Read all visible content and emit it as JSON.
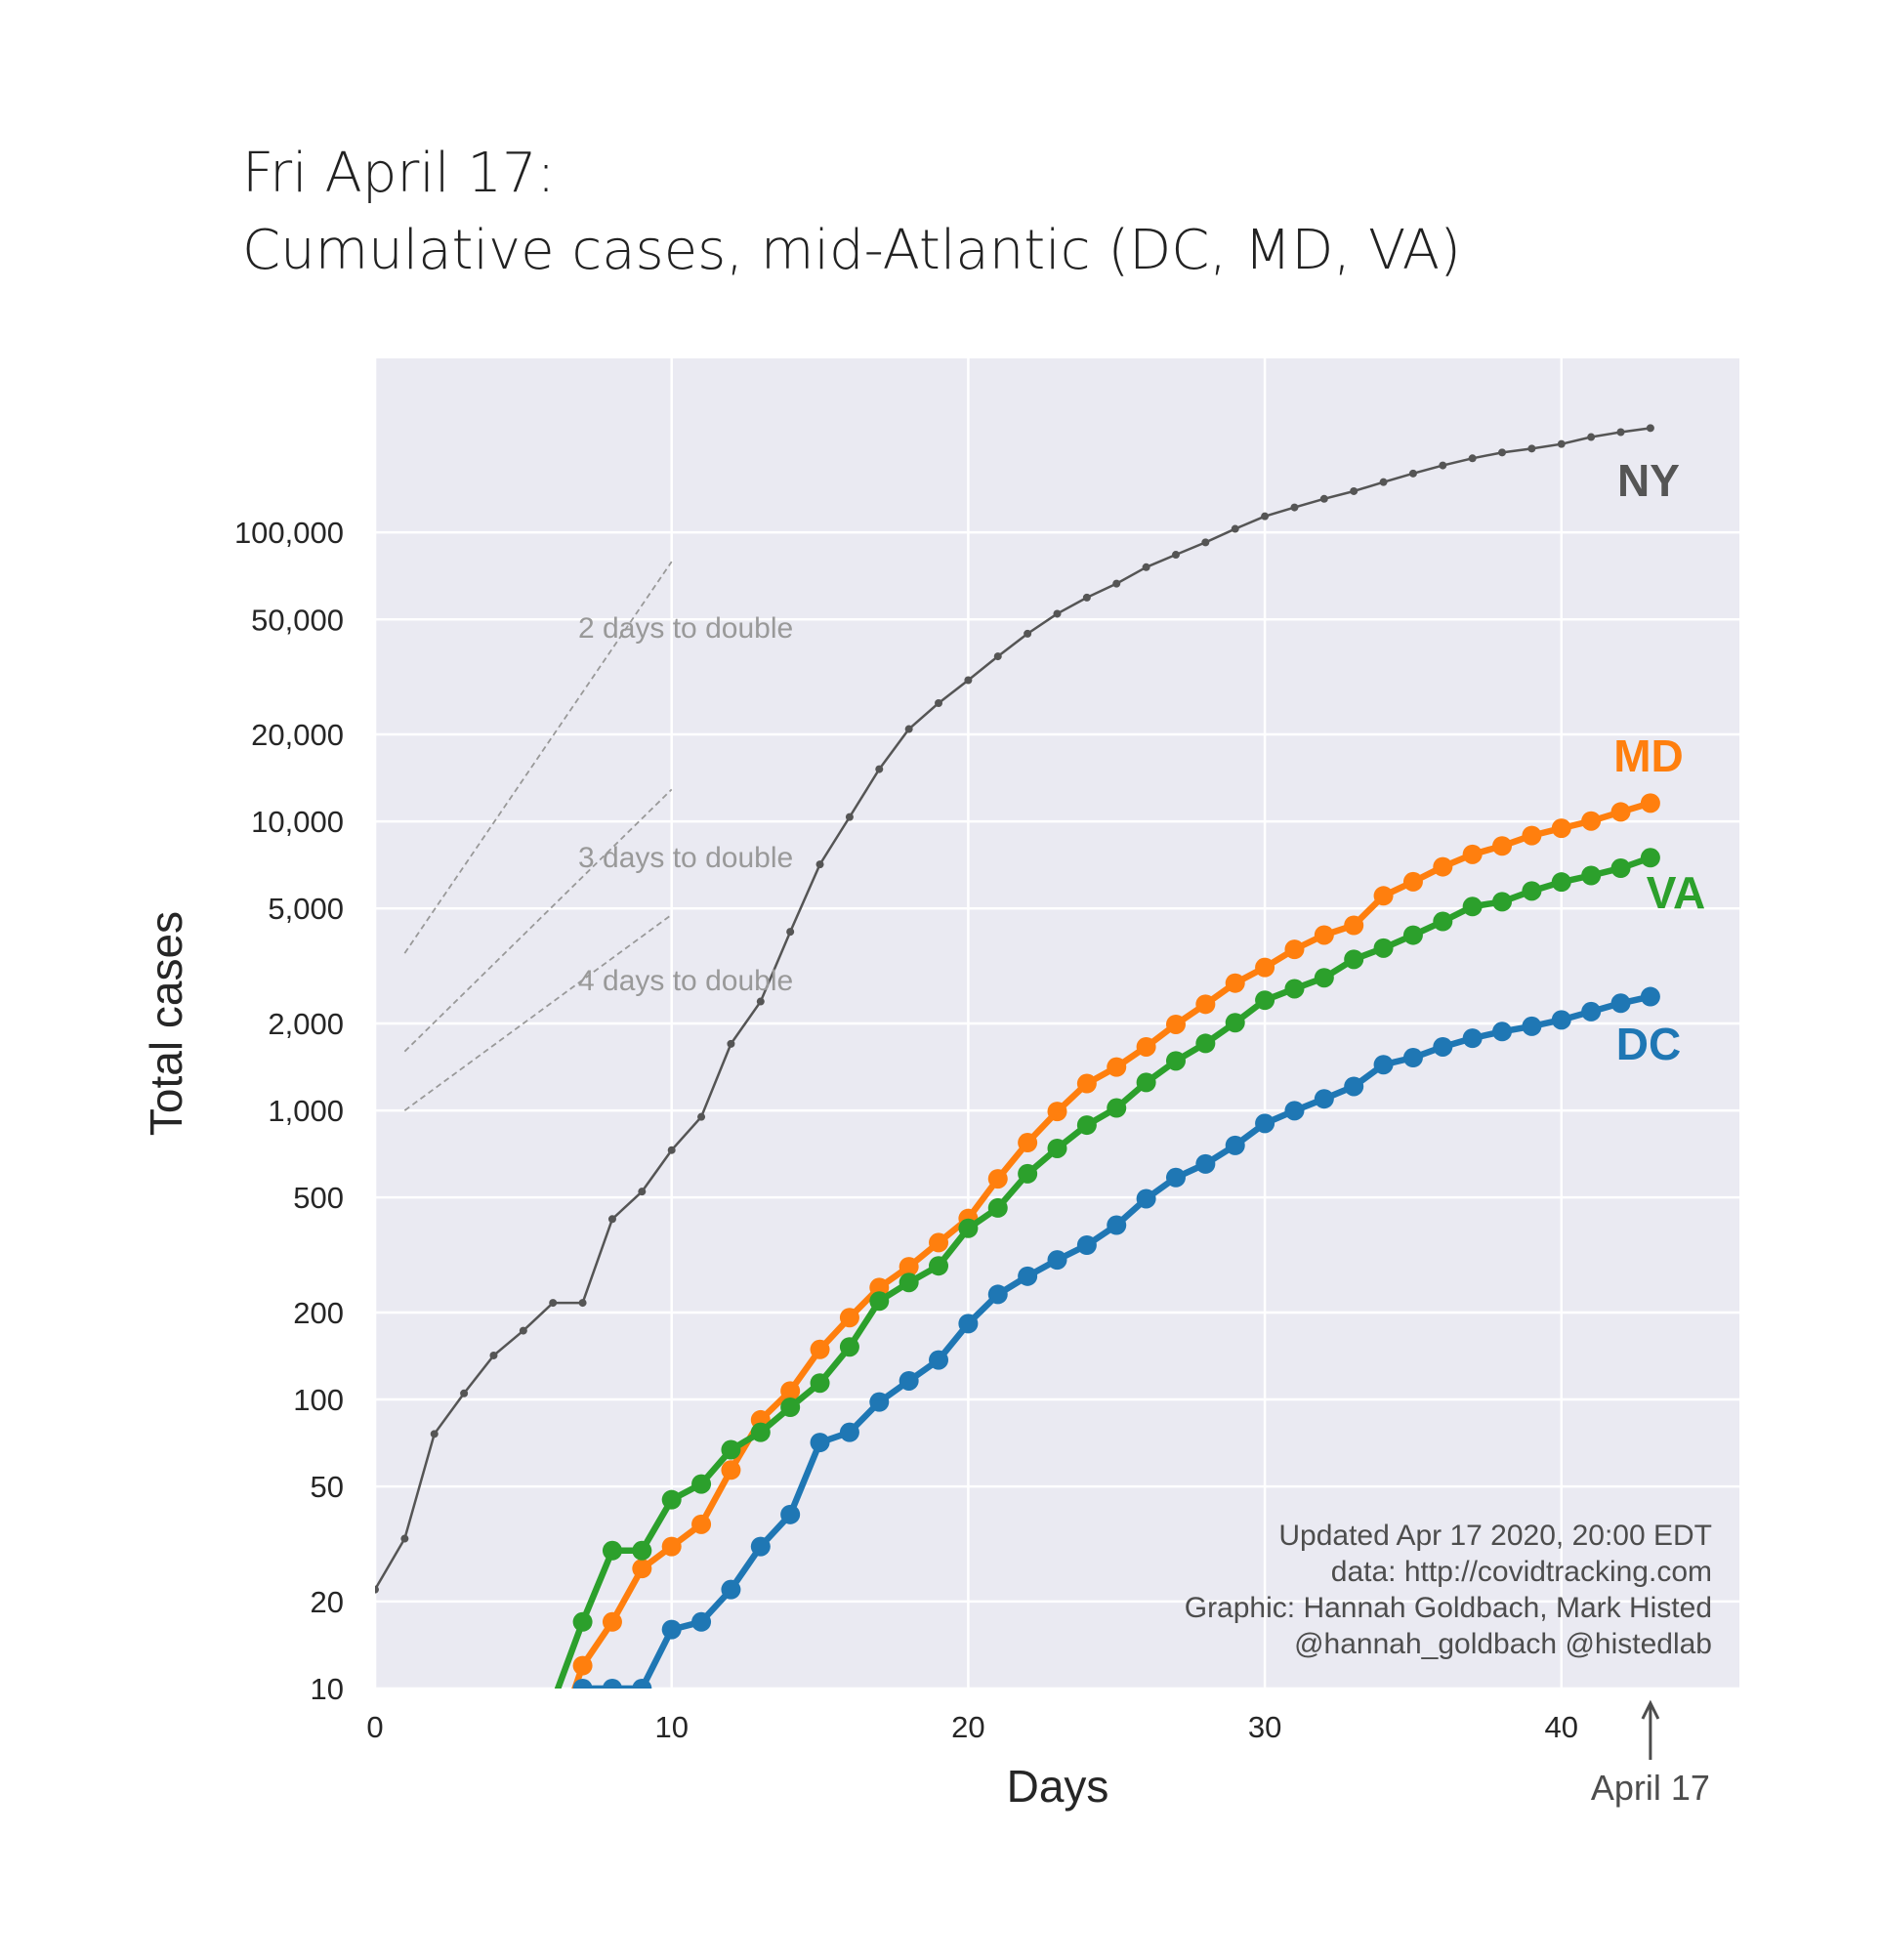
{
  "title": {
    "line1": "Fri April 17:",
    "line2": "Cumulative cases, mid-Atlantic (DC, MD, VA)"
  },
  "chart_data": {
    "type": "line",
    "title": "Fri April 17:\nCumulative cases, mid-Atlantic (DC, MD, VA)",
    "xlabel": "Days",
    "ylabel": "Total cases",
    "yscale": "log",
    "xlim": [
      0,
      46
    ],
    "ylim": [
      10,
      400000
    ],
    "grid": true,
    "background": "#eaeaf2",
    "x_ticks": [
      0,
      10,
      20,
      30,
      40
    ],
    "x_tick_labels": [
      "0",
      "10",
      "20",
      "30",
      "40"
    ],
    "y_ticks": [
      10,
      20,
      50,
      100,
      200,
      500,
      1000,
      2000,
      5000,
      10000,
      20000,
      50000,
      100000
    ],
    "y_tick_labels": [
      "10",
      "20",
      "50",
      "100",
      "200",
      "500",
      "1,000",
      "2,000",
      "5,000",
      "10,000",
      "20,000",
      "50,000",
      "100,000"
    ],
    "series": [
      {
        "name": "NY",
        "color": "#555555",
        "style": "thin",
        "x": [
          0,
          1,
          2,
          3,
          4,
          5,
          6,
          7,
          8,
          9,
          10,
          11,
          12,
          13,
          14,
          15,
          16,
          17,
          18,
          19,
          20,
          21,
          22,
          23,
          24,
          25,
          26,
          27,
          28,
          29,
          30,
          31,
          32,
          33,
          34,
          35,
          36,
          37,
          38,
          39,
          40,
          41,
          42,
          43
        ],
        "values": [
          22,
          33,
          76,
          105,
          142,
          173,
          216,
          216,
          421,
          524,
          729,
          950,
          1700,
          2382,
          4152,
          7102,
          10356,
          15168,
          20875,
          25665,
          30811,
          37258,
          44635,
          52318,
          59513,
          66497,
          75795,
          83712,
          92381,
          102863,
          113704,
          122031,
          130689,
          138863,
          149316,
          159937,
          170512,
          180458,
          189033,
          195031,
          202208,
          213779,
          222284,
          229642
        ]
      },
      {
        "name": "MD",
        "color": "#ff7f0e",
        "style": "thick",
        "x": [
          6,
          7,
          8,
          9,
          10,
          11,
          12,
          13,
          14,
          15,
          16,
          17,
          18,
          19,
          20,
          21,
          22,
          23,
          24,
          25,
          26,
          27,
          28,
          29,
          30,
          31,
          32,
          33,
          34,
          35,
          36,
          37,
          38,
          39,
          40,
          41,
          42,
          43
        ],
        "values": [
          6,
          12,
          17,
          26,
          31,
          37,
          57,
          85,
          107,
          149,
          192,
          244,
          288,
          349,
          423,
          580,
          774,
          992,
          1239,
          1413,
          1660,
          1985,
          2331,
          2758,
          3125,
          3609,
          4045,
          4371,
          5529,
          6185,
          6968,
          7694,
          8225,
          8936,
          9472,
          10032,
          10784,
          11572
        ]
      },
      {
        "name": "VA",
        "color": "#2ca02c",
        "style": "thick",
        "x": [
          6,
          7,
          8,
          9,
          10,
          11,
          12,
          13,
          14,
          15,
          16,
          17,
          18,
          19,
          20,
          21,
          22,
          23,
          24,
          25,
          26,
          27,
          28,
          29,
          30,
          31,
          32,
          33,
          34,
          35,
          36,
          37,
          38,
          39,
          40,
          41,
          42,
          43
        ],
        "values": [
          9,
          17,
          30,
          30,
          45,
          51,
          67,
          77,
          94,
          114,
          152,
          219,
          254,
          290,
          391,
          460,
          604,
          739,
          890,
          1020,
          1250,
          1484,
          1706,
          2012,
          2407,
          2637,
          2878,
          3333,
          3645,
          4042,
          4509,
          5077,
          5274,
          5747,
          6171,
          6500,
          6889,
          7491
        ]
      },
      {
        "name": "DC",
        "color": "#1f77b4",
        "style": "thick",
        "x": [
          7,
          8,
          9,
          10,
          11,
          12,
          13,
          14,
          15,
          16,
          17,
          18,
          19,
          20,
          21,
          22,
          23,
          24,
          25,
          26,
          27,
          28,
          29,
          30,
          31,
          32,
          33,
          34,
          35,
          36,
          37,
          38,
          39,
          40,
          41,
          42,
          43
        ],
        "values": [
          10,
          10,
          10,
          16,
          17,
          22,
          31,
          40,
          71,
          77,
          98,
          116,
          137,
          183,
          231,
          267,
          304,
          342,
          401,
          495,
          586,
          653,
          757,
          902,
          998,
          1097,
          1211,
          1440,
          1523,
          1660,
          1778,
          1875,
          1955,
          2058,
          2197,
          2350,
          2476
        ]
      }
    ],
    "guides": [
      {
        "label": "2 days to double",
        "x": [
          1,
          10
        ],
        "values": [
          3500,
          79196
        ]
      },
      {
        "label": "3 days to double",
        "x": [
          1,
          10
        ],
        "values": [
          1600,
          12902
        ]
      },
      {
        "label": "4 days to double",
        "x": [
          1,
          10
        ],
        "values": [
          1000,
          4757
        ]
      }
    ],
    "annotations": {
      "credits": [
        "Updated Apr 17 2020, 20:00 EDT",
        "data: http://covidtracking.com",
        "Graphic: Hannah Goldbach, Mark Histed",
        "@hannah_goldbach @histedlab"
      ],
      "marker_label": "April 17",
      "marker_x": 43
    }
  }
}
